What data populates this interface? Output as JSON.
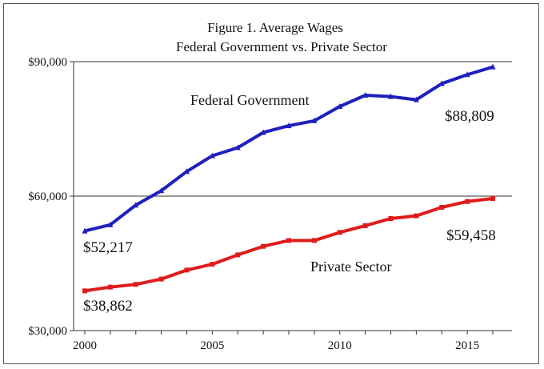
{
  "chart_data": {
    "type": "line",
    "title": "Figure 1. Average Wages",
    "subtitle": "Federal Government vs. Private Sector",
    "xlabel": "",
    "ylabel": "",
    "xlim": [
      2000,
      2016
    ],
    "ylim": [
      30000,
      90000
    ],
    "grid": "horizontal at 60000 and 90000",
    "x": [
      2000,
      2001,
      2002,
      2003,
      2004,
      2005,
      2006,
      2007,
      2008,
      2009,
      2010,
      2011,
      2012,
      2013,
      2014,
      2015,
      2016
    ],
    "x_ticks": [
      2000,
      2005,
      2010,
      2015
    ],
    "x_tick_labels": [
      "2000",
      "2005",
      "2010",
      "2015"
    ],
    "y_ticks": [
      30000,
      60000,
      90000
    ],
    "y_tick_labels": [
      "$30,000",
      "$60,000",
      "$90,000"
    ],
    "series": [
      {
        "name": "Federal Government",
        "color": "#1f1fbf",
        "marker": "triangle",
        "values": [
          52217,
          53600,
          58000,
          61200,
          65500,
          69000,
          70800,
          74200,
          75700,
          76800,
          80000,
          82500,
          82200,
          81500,
          85100,
          87100,
          88809
        ],
        "label": "Federal Government",
        "start_label": "$52,217",
        "end_label": "$88,809"
      },
      {
        "name": "Private Sector",
        "color": "#e01b1b",
        "marker": "square",
        "values": [
          38862,
          39700,
          40300,
          41500,
          43500,
          44800,
          46900,
          48800,
          50100,
          50100,
          51900,
          53400,
          55000,
          55600,
          57500,
          58800,
          59458
        ],
        "label": "Private Sector",
        "start_label": "$38,862",
        "end_label": "$59,458"
      }
    ]
  }
}
